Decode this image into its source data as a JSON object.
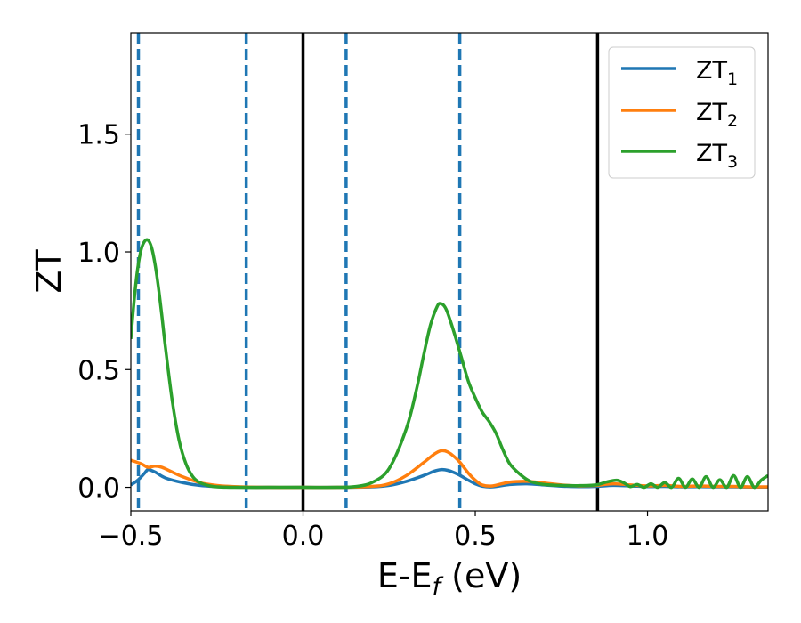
{
  "chart_data": {
    "type": "line",
    "title": "",
    "xlabel": "E-E",
    "xlabel_sub": "f",
    "xlabel_unit": " (eV)",
    "ylabel": "ZT",
    "xlim": [
      -0.5,
      1.35
    ],
    "ylim": [
      -0.1,
      1.93
    ],
    "xticks": [
      -0.5,
      0.0,
      0.5,
      1.0
    ],
    "xtick_labels": [
      "−0.5",
      "0.0",
      "0.5",
      "1.0"
    ],
    "yticks": [
      0.0,
      0.5,
      1.0,
      1.5
    ],
    "ytick_labels": [
      "0.0",
      "0.5",
      "1.0",
      "1.5"
    ],
    "grid": false,
    "legend_position": "top-right",
    "series": [
      {
        "name": "ZT",
        "name_sub": "1",
        "color": "#1f77b4",
        "x": [
          -0.5,
          -0.48,
          -0.46,
          -0.45,
          -0.43,
          -0.4,
          -0.35,
          -0.3,
          -0.25,
          -0.2,
          -0.1,
          0.0,
          0.1,
          0.2,
          0.25,
          0.3,
          0.35,
          0.38,
          0.4,
          0.42,
          0.45,
          0.48,
          0.5,
          0.52,
          0.55,
          0.6,
          0.65,
          0.7,
          0.75,
          0.8,
          0.85,
          0.9,
          0.95,
          1.0,
          1.05,
          1.1,
          1.15,
          1.2,
          1.25,
          1.3,
          1.35
        ],
        "y": [
          0.01,
          0.03,
          0.06,
          0.075,
          0.065,
          0.04,
          0.02,
          0.008,
          0.003,
          0.001,
          0.0,
          0.0,
          0.0,
          0.002,
          0.008,
          0.025,
          0.05,
          0.068,
          0.075,
          0.072,
          0.055,
          0.03,
          0.015,
          0.005,
          0.002,
          0.012,
          0.015,
          0.01,
          0.005,
          0.003,
          0.004,
          0.008,
          0.006,
          0.003,
          0.004,
          0.002,
          0.003,
          0.002,
          0.002,
          0.001,
          0.001
        ]
      },
      {
        "name": "ZT",
        "name_sub": "2",
        "color": "#ff7f0e",
        "x": [
          -0.5,
          -0.47,
          -0.45,
          -0.43,
          -0.41,
          -0.38,
          -0.35,
          -0.3,
          -0.25,
          -0.2,
          -0.1,
          0.0,
          0.1,
          0.2,
          0.25,
          0.3,
          0.35,
          0.38,
          0.4,
          0.42,
          0.45,
          0.48,
          0.5,
          0.52,
          0.55,
          0.6,
          0.65,
          0.7,
          0.75,
          0.8,
          0.85,
          0.9,
          0.95,
          1.0,
          1.05,
          1.1,
          1.15,
          1.2,
          1.25,
          1.3,
          1.35
        ],
        "y": [
          0.115,
          0.1,
          0.085,
          0.09,
          0.085,
          0.065,
          0.045,
          0.02,
          0.008,
          0.003,
          0.0,
          0.0,
          0.0,
          0.004,
          0.015,
          0.05,
          0.105,
          0.14,
          0.155,
          0.15,
          0.115,
          0.06,
          0.03,
          0.01,
          0.006,
          0.022,
          0.025,
          0.018,
          0.01,
          0.006,
          0.008,
          0.015,
          0.01,
          0.006,
          0.008,
          0.004,
          0.006,
          0.004,
          0.004,
          0.002,
          0.002
        ]
      },
      {
        "name": "ZT",
        "name_sub": "3",
        "color": "#2ca02c",
        "x": [
          -0.5,
          -0.49,
          -0.48,
          -0.47,
          -0.46,
          -0.45,
          -0.44,
          -0.43,
          -0.42,
          -0.41,
          -0.4,
          -0.38,
          -0.36,
          -0.34,
          -0.32,
          -0.3,
          -0.27,
          -0.25,
          -0.2,
          -0.1,
          0.0,
          0.1,
          0.15,
          0.2,
          0.25,
          0.3,
          0.33,
          0.35,
          0.37,
          0.39,
          0.4,
          0.41,
          0.42,
          0.44,
          0.46,
          0.48,
          0.5,
          0.52,
          0.54,
          0.56,
          0.58,
          0.6,
          0.63,
          0.66,
          0.7,
          0.75,
          0.8,
          0.85,
          0.88,
          0.91,
          0.93,
          0.95,
          0.97,
          0.99,
          1.01,
          1.03,
          1.05,
          1.07,
          1.09,
          1.11,
          1.13,
          1.15,
          1.17,
          1.19,
          1.21,
          1.23,
          1.25,
          1.27,
          1.29,
          1.31,
          1.33,
          1.35
        ],
        "y": [
          0.63,
          0.8,
          0.93,
          1.01,
          1.045,
          1.05,
          1.02,
          0.95,
          0.85,
          0.73,
          0.6,
          0.37,
          0.2,
          0.1,
          0.045,
          0.02,
          0.006,
          0.002,
          0.0,
          0.0,
          0.0,
          0.0,
          0.003,
          0.02,
          0.08,
          0.25,
          0.42,
          0.56,
          0.69,
          0.77,
          0.78,
          0.77,
          0.74,
          0.65,
          0.55,
          0.45,
          0.38,
          0.32,
          0.28,
          0.23,
          0.16,
          0.1,
          0.055,
          0.025,
          0.012,
          0.008,
          0.007,
          0.01,
          0.022,
          0.03,
          0.02,
          0.003,
          0.012,
          0.0,
          0.015,
          0.0,
          0.02,
          0.0,
          0.038,
          0.0,
          0.035,
          0.0,
          0.045,
          0.0,
          0.032,
          0.0,
          0.05,
          0.0,
          0.045,
          0.0,
          0.03,
          0.05
        ]
      }
    ],
    "vlines": [
      {
        "x": -0.478,
        "style": "dashed",
        "color": "#1f77b4"
      },
      {
        "x": -0.165,
        "style": "dashed",
        "color": "#1f77b4"
      },
      {
        "x": 0.0,
        "style": "solid",
        "color": "#000000"
      },
      {
        "x": 0.125,
        "style": "dashed",
        "color": "#1f77b4"
      },
      {
        "x": 0.455,
        "style": "dashed",
        "color": "#1f77b4"
      },
      {
        "x": 0.855,
        "style": "solid",
        "color": "#000000"
      }
    ]
  }
}
